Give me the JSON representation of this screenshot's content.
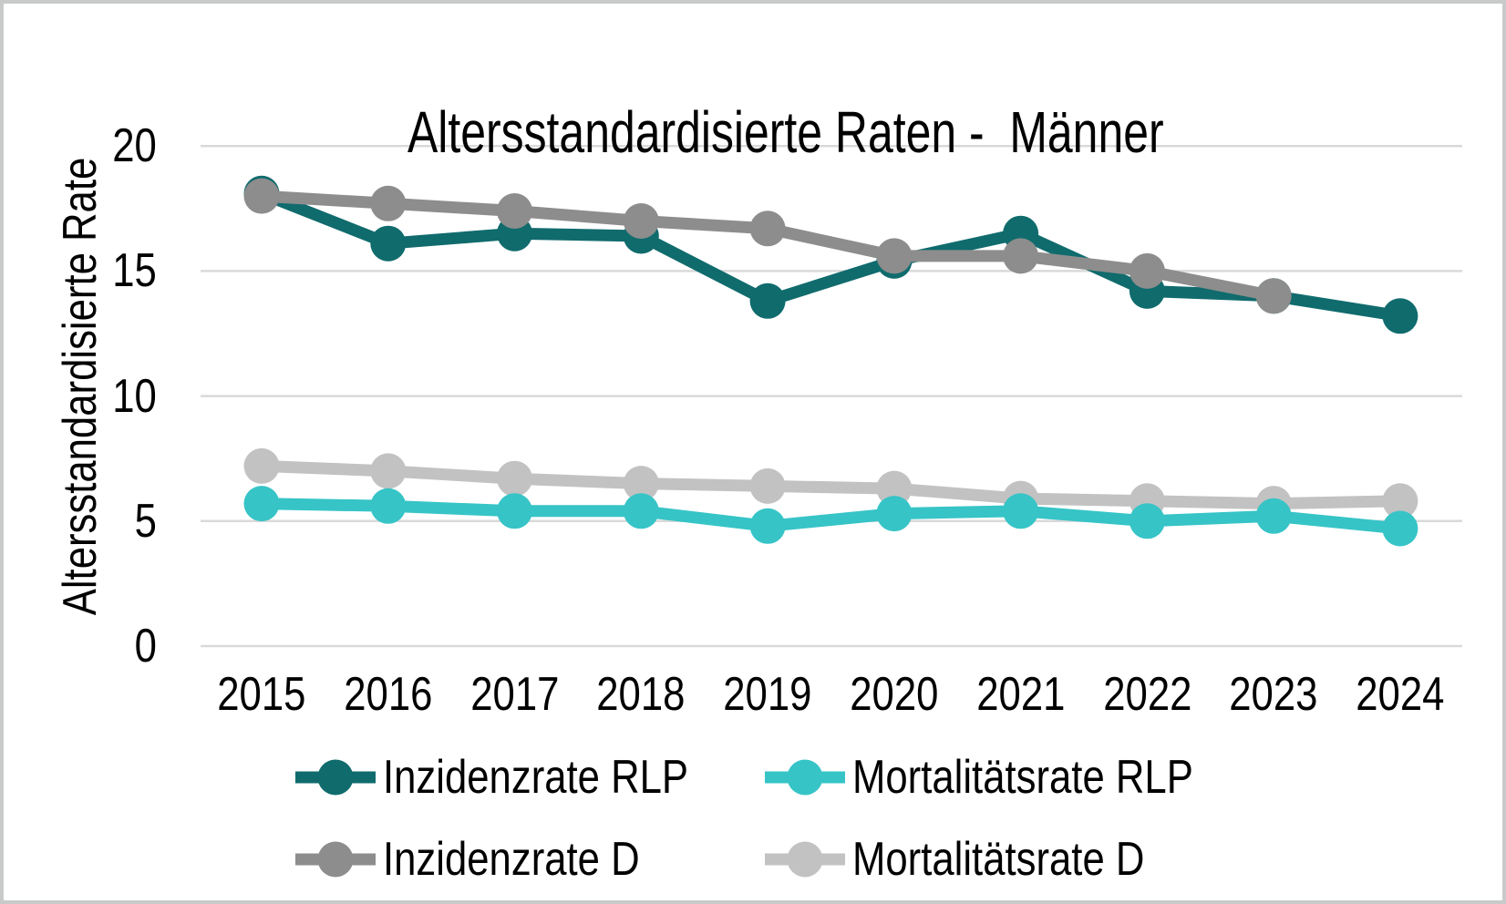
{
  "frame": {
    "background_color": "#ffffff",
    "border_color": "#c8caca",
    "text_color": "#000000",
    "gridline_color": "#d9d9d9"
  },
  "chart_data": {
    "type": "line",
    "title": "Altersstandardisierte Raten -  Männer",
    "xlabel": "",
    "ylabel": "Altersstandardisierte Rate",
    "x": [
      "2015",
      "2016",
      "2017",
      "2018",
      "2019",
      "2020",
      "2021",
      "2022",
      "2023",
      "2024"
    ],
    "y_ticks": [
      0,
      5,
      10,
      15,
      20
    ],
    "ylim": [
      0,
      21.6
    ],
    "grid": "horizontal",
    "legend_position": "bottom-two-columns",
    "series": [
      {
        "name": "Inzidenzrate RLP",
        "color": "#106b6d",
        "values": [
          18.1,
          16.1,
          16.5,
          16.4,
          13.8,
          15.4,
          16.5,
          14.2,
          14.0,
          13.2
        ]
      },
      {
        "name": "Mortalitätsrate RLP",
        "color": "#36c4c7",
        "values": [
          5.7,
          5.6,
          5.4,
          5.4,
          4.8,
          5.3,
          5.4,
          5.0,
          5.2,
          4.7
        ]
      },
      {
        "name": "Inzidenzrate D",
        "color": "#8d8d8d",
        "values": [
          18.0,
          17.7,
          17.4,
          17.0,
          16.7,
          15.6,
          15.6,
          15.0,
          14.0,
          null
        ]
      },
      {
        "name": "Mortalitätsrate D",
        "color": "#c2c2c2",
        "values": [
          7.2,
          7.0,
          6.7,
          6.5,
          6.4,
          6.3,
          5.9,
          5.8,
          5.7,
          5.8
        ]
      }
    ],
    "draw_order": [
      3,
      1,
      0,
      2
    ]
  }
}
